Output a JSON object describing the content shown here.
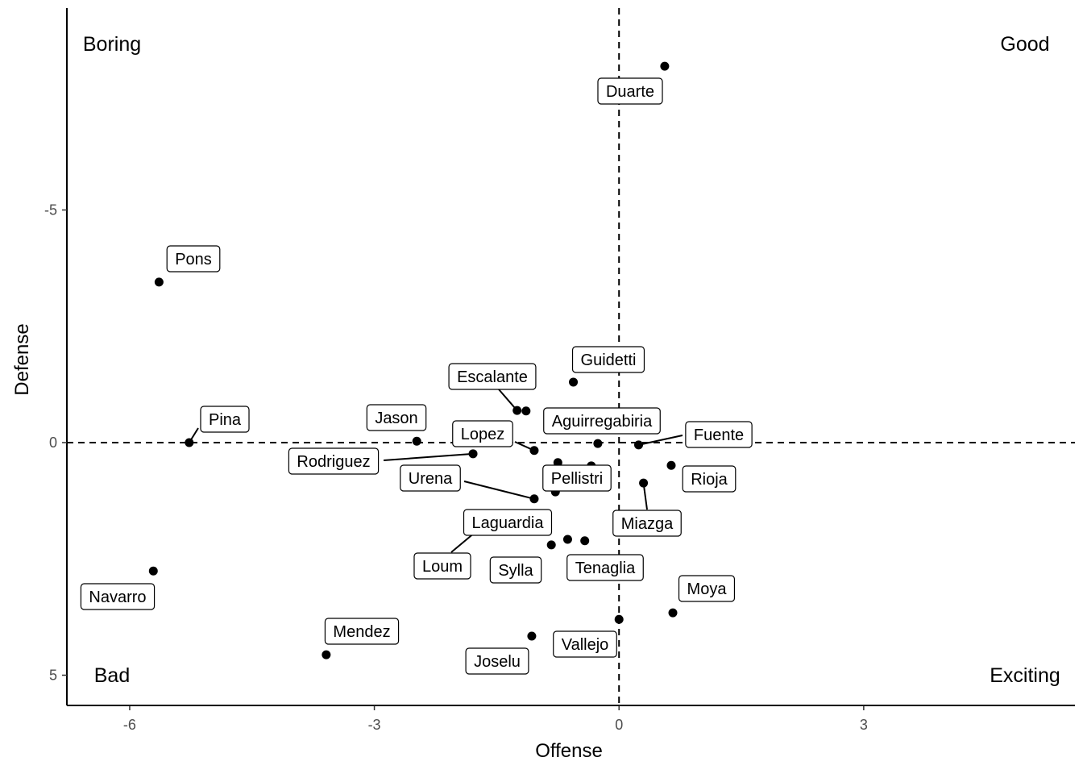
{
  "chart_data": {
    "type": "scatter",
    "xlabel": "Offense",
    "ylabel": "Defense",
    "xlim": [
      -6.77,
      5.59
    ],
    "ylim": [
      -9.34,
      5.65
    ],
    "y_reversed": true,
    "xticks": [
      -6,
      -3,
      0,
      3
    ],
    "yticks": [
      -5,
      0,
      5
    ],
    "reference_lines": {
      "x": 0,
      "y": 0
    },
    "quadrant_labels": {
      "top_left": "Boring",
      "top_right": "Good",
      "bottom_left": "Bad",
      "bottom_right": "Exciting"
    },
    "points": [
      {
        "name": "Duarte",
        "x": 0.56,
        "y": -8.09
      },
      {
        "name": "Pons",
        "x": -5.64,
        "y": -3.45
      },
      {
        "name": "Guidetti",
        "x": -0.56,
        "y": -1.3
      },
      {
        "name": "Escalante",
        "x": -1.25,
        "y": -0.69
      },
      {
        "name": "",
        "x": -1.14,
        "y": -0.68
      },
      {
        "name": "Pina",
        "x": -5.27,
        "y": 0.0
      },
      {
        "name": "Jason",
        "x": -2.48,
        "y": -0.03
      },
      {
        "name": "Rodriguez",
        "x": -1.79,
        "y": 0.24
      },
      {
        "name": "Lopez",
        "x": -1.04,
        "y": 0.17
      },
      {
        "name": "Aguirregabiria",
        "x": -0.26,
        "y": 0.02
      },
      {
        "name": "Fuente",
        "x": 0.24,
        "y": 0.05
      },
      {
        "name": "Rioja",
        "x": 0.64,
        "y": 0.49
      },
      {
        "name": "Miazga",
        "x": 0.3,
        "y": 0.87
      },
      {
        "name": "Pellistri",
        "x": -0.75,
        "y": 0.43
      },
      {
        "name": "",
        "x": -0.34,
        "y": 0.5
      },
      {
        "name": "",
        "x": -0.78,
        "y": 1.06
      },
      {
        "name": "Urena",
        "x": -1.04,
        "y": 1.21
      },
      {
        "name": "Laguardia",
        "x": -0.63,
        "y": 2.08
      },
      {
        "name": "Sylla",
        "x": -0.83,
        "y": 2.2
      },
      {
        "name": "Tenaglia",
        "x": -0.42,
        "y": 2.11
      },
      {
        "name": "Loum",
        "x": -1.36,
        "y": 1.72
      },
      {
        "name": "Navarro",
        "x": -5.71,
        "y": 2.76
      },
      {
        "name": "Mendez",
        "x": -3.59,
        "y": 4.56
      },
      {
        "name": "Joselu",
        "x": -1.07,
        "y": 4.16
      },
      {
        "name": "Vallejo",
        "x": 0.0,
        "y": 3.8
      },
      {
        "name": "Moya",
        "x": 0.66,
        "y": 3.66
      }
    ]
  }
}
